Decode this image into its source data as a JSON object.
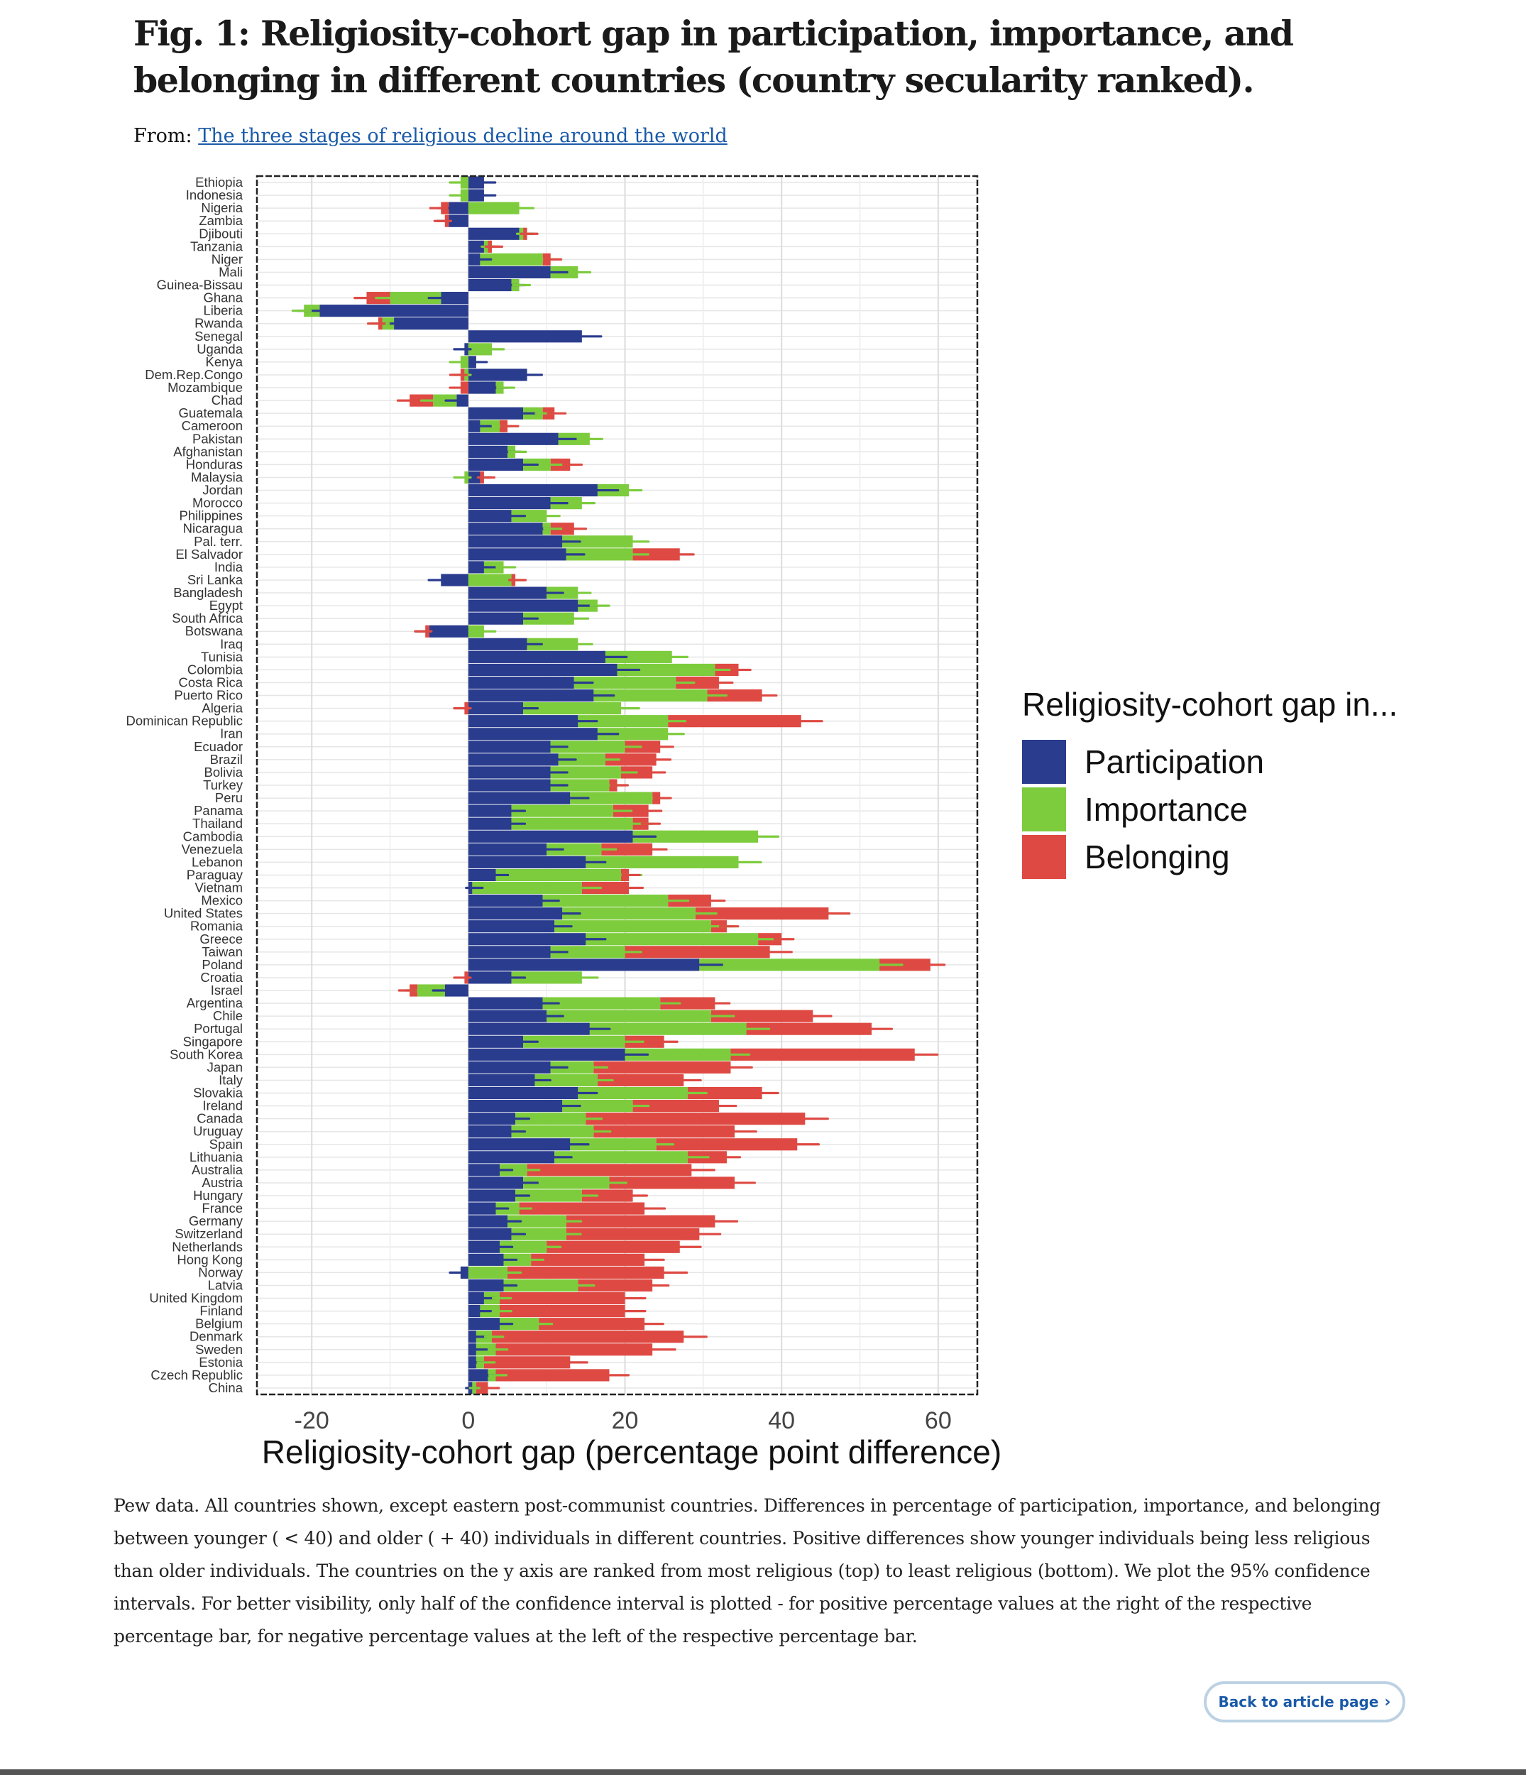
{
  "page": {
    "figure_title": "Fig. 1: Religiosity-cohort gap in participation, importance, and belonging in different countries (country secularity ranked).",
    "from_label": "From:",
    "source_link": "The three stages of religious decline around the world",
    "caption": "Pew data. All countries shown, except eastern post-communist countries. Differences in percentage of participation, importance, and belonging between younger ( < 40) and older ( + 40) individuals in different countries. Positive differences show younger individuals being less religious than older individuals. The countries on the y axis are ranked from most religious (top) to least religious (bottom). We plot the 95% confidence intervals. For better visibility, only half of the confidence interval is plotted - for positive percentage values at the right of the respective percentage bar, for negative percentage values at the left of the respective percentage bar.",
    "back_button": "Back to article page",
    "back_icon": "chevron-right-icon"
  },
  "chart_data": {
    "type": "bar",
    "orientation": "horizontal",
    "stacked": true,
    "xlabel": "Religiosity-cohort gap (percentage point difference)",
    "ylabel": "",
    "xlim": [
      -27,
      65
    ],
    "xticks": [
      -20,
      0,
      20,
      40,
      60
    ],
    "grid": true,
    "legend_title": "Religiosity-cohort gap in...",
    "legend_position": "right",
    "series": [
      {
        "name": "Participation",
        "color": "#2a3c8e"
      },
      {
        "name": "Importance",
        "color": "#7dcc3d"
      },
      {
        "name": "Belonging",
        "color": "#de4a43"
      }
    ],
    "rows": [
      {
        "country": "Ethiopia",
        "values": [
          2,
          -1,
          0
        ]
      },
      {
        "country": "Indonesia",
        "values": [
          2,
          -1,
          0
        ]
      },
      {
        "country": "Nigeria",
        "values": [
          -2.5,
          6.5,
          -1
        ]
      },
      {
        "country": "Zambia",
        "values": [
          -2.5,
          0,
          -0.5
        ]
      },
      {
        "country": "Djibouti",
        "values": [
          6.5,
          0.5,
          0.5
        ]
      },
      {
        "country": "Tanzania",
        "values": [
          2,
          0.5,
          0.5
        ]
      },
      {
        "country": "Niger",
        "values": [
          1.5,
          8,
          1
        ]
      },
      {
        "country": "Mali",
        "values": [
          10.5,
          3.5,
          0
        ]
      },
      {
        "country": "Guinea-Bissau",
        "values": [
          5.5,
          1,
          0
        ]
      },
      {
        "country": "Ghana",
        "values": [
          -3.5,
          -6.5,
          -3
        ]
      },
      {
        "country": "Liberia",
        "values": [
          -19,
          -2,
          0
        ]
      },
      {
        "country": "Rwanda",
        "values": [
          -9.5,
          -1.5,
          -0.5
        ]
      },
      {
        "country": "Senegal",
        "values": [
          14.5,
          0,
          0
        ]
      },
      {
        "country": "Uganda",
        "values": [
          -0.5,
          3,
          0
        ]
      },
      {
        "country": "Kenya",
        "values": [
          1,
          -1,
          0
        ]
      },
      {
        "country": "Dem.Rep.Congo",
        "values": [
          7.5,
          -0.5,
          -0.5
        ]
      },
      {
        "country": "Mozambique",
        "values": [
          3.5,
          1,
          -1
        ]
      },
      {
        "country": "Chad",
        "values": [
          -1.5,
          -3,
          -3
        ]
      },
      {
        "country": "Guatemala",
        "values": [
          7,
          2.5,
          1.5
        ]
      },
      {
        "country": "Cameroon",
        "values": [
          1.5,
          2.5,
          1
        ]
      },
      {
        "country": "Pakistan",
        "values": [
          11.5,
          4,
          0
        ]
      },
      {
        "country": "Afghanistan",
        "values": [
          5,
          1,
          0
        ]
      },
      {
        "country": "Honduras",
        "values": [
          7,
          3.5,
          2.5
        ]
      },
      {
        "country": "Malaysia",
        "values": [
          1.5,
          -0.5,
          0.5
        ]
      },
      {
        "country": "Jordan",
        "values": [
          16.5,
          4,
          0
        ]
      },
      {
        "country": "Morocco",
        "values": [
          10.5,
          4,
          0
        ]
      },
      {
        "country": "Philippines",
        "values": [
          5.5,
          4.5,
          0
        ]
      },
      {
        "country": "Nicaragua",
        "values": [
          9.5,
          1,
          3
        ]
      },
      {
        "country": "Pal. terr.",
        "values": [
          12,
          9,
          0
        ]
      },
      {
        "country": "El Salvador",
        "values": [
          12.5,
          8.5,
          6
        ]
      },
      {
        "country": "India",
        "values": [
          2,
          2.5,
          0
        ]
      },
      {
        "country": "Sri Lanka",
        "values": [
          -3.5,
          5.5,
          0.5
        ]
      },
      {
        "country": "Bangladesh",
        "values": [
          10,
          4,
          0
        ]
      },
      {
        "country": "Egypt",
        "values": [
          14,
          2.5,
          0
        ]
      },
      {
        "country": "South Africa",
        "values": [
          7,
          6.5,
          0
        ]
      },
      {
        "country": "Botswana",
        "values": [
          -5,
          2,
          -0.5
        ]
      },
      {
        "country": "Iraq",
        "values": [
          7.5,
          6.5,
          0
        ]
      },
      {
        "country": "Tunisia",
        "values": [
          17.5,
          8.5,
          0
        ]
      },
      {
        "country": "Colombia",
        "values": [
          19,
          12.5,
          3
        ]
      },
      {
        "country": "Costa Rica",
        "values": [
          13.5,
          13,
          5.5
        ]
      },
      {
        "country": "Puerto Rico",
        "values": [
          16,
          14.5,
          7
        ]
      },
      {
        "country": "Algeria",
        "values": [
          7,
          12.5,
          -0.5
        ]
      },
      {
        "country": "Dominican Republic",
        "values": [
          14,
          11.5,
          17
        ]
      },
      {
        "country": "Iran",
        "values": [
          16.5,
          9,
          0
        ]
      },
      {
        "country": "Ecuador",
        "values": [
          10.5,
          9.5,
          4.5
        ]
      },
      {
        "country": "Brazil",
        "values": [
          11.5,
          6,
          6.5
        ]
      },
      {
        "country": "Bolivia",
        "values": [
          10.5,
          9,
          4
        ]
      },
      {
        "country": "Turkey",
        "values": [
          10.5,
          7.5,
          1
        ]
      },
      {
        "country": "Peru",
        "values": [
          13,
          10.5,
          1
        ]
      },
      {
        "country": "Panama",
        "values": [
          5.5,
          13,
          4.5
        ]
      },
      {
        "country": "Thailand",
        "values": [
          5.5,
          15.5,
          2
        ]
      },
      {
        "country": "Cambodia",
        "values": [
          21,
          16,
          0
        ]
      },
      {
        "country": "Venezuela",
        "values": [
          10,
          7,
          6.5
        ]
      },
      {
        "country": "Lebanon",
        "values": [
          15,
          19.5,
          0
        ]
      },
      {
        "country": "Paraguay",
        "values": [
          3.5,
          16,
          1
        ]
      },
      {
        "country": "Vietnam",
        "values": [
          0.5,
          14,
          6
        ]
      },
      {
        "country": "Mexico",
        "values": [
          9.5,
          16,
          5.5
        ]
      },
      {
        "country": "United States",
        "values": [
          12,
          17,
          17
        ]
      },
      {
        "country": "Romania",
        "values": [
          11,
          20,
          2
        ]
      },
      {
        "country": "Greece",
        "values": [
          15,
          22,
          3
        ]
      },
      {
        "country": "Taiwan",
        "values": [
          10.5,
          9.5,
          18.5
        ]
      },
      {
        "country": "Poland",
        "values": [
          29.5,
          23,
          6.5
        ]
      },
      {
        "country": "Croatia",
        "values": [
          5.5,
          9,
          -0.5
        ]
      },
      {
        "country": "Israel",
        "values": [
          -3,
          -3.5,
          -1
        ]
      },
      {
        "country": "Argentina",
        "values": [
          9.5,
          15,
          7
        ]
      },
      {
        "country": "Chile",
        "values": [
          10,
          21,
          13
        ]
      },
      {
        "country": "Portugal",
        "values": [
          15.5,
          20,
          16
        ]
      },
      {
        "country": "Singapore",
        "values": [
          7,
          13,
          5
        ]
      },
      {
        "country": "South Korea",
        "values": [
          20,
          13.5,
          23.5
        ]
      },
      {
        "country": "Japan",
        "values": [
          10.5,
          5.5,
          17.5
        ]
      },
      {
        "country": "Italy",
        "values": [
          8.5,
          8,
          11
        ]
      },
      {
        "country": "Slovakia",
        "values": [
          14,
          14,
          9.5
        ]
      },
      {
        "country": "Ireland",
        "values": [
          12,
          9,
          11
        ]
      },
      {
        "country": "Canada",
        "values": [
          6,
          9,
          28
        ]
      },
      {
        "country": "Uruguay",
        "values": [
          5.5,
          10.5,
          18
        ]
      },
      {
        "country": "Spain",
        "values": [
          13,
          11,
          18
        ]
      },
      {
        "country": "Lithuania",
        "values": [
          11,
          17,
          5
        ]
      },
      {
        "country": "Australia",
        "values": [
          4,
          3.5,
          21
        ]
      },
      {
        "country": "Austria",
        "values": [
          7,
          11,
          16
        ]
      },
      {
        "country": "Hungary",
        "values": [
          6,
          8.5,
          6.5
        ]
      },
      {
        "country": "France",
        "values": [
          3.5,
          3,
          16
        ]
      },
      {
        "country": "Germany",
        "values": [
          5,
          7.5,
          19
        ]
      },
      {
        "country": "Switzerland",
        "values": [
          5.5,
          7,
          17
        ]
      },
      {
        "country": "Netherlands",
        "values": [
          4,
          6,
          17
        ]
      },
      {
        "country": "Hong Kong",
        "values": [
          4.5,
          3.5,
          14.5
        ]
      },
      {
        "country": "Norway",
        "values": [
          -1,
          5,
          20
        ]
      },
      {
        "country": "Latvia",
        "values": [
          4.5,
          9.5,
          9.5
        ]
      },
      {
        "country": "United Kingdom",
        "values": [
          2,
          2,
          16
        ]
      },
      {
        "country": "Finland",
        "values": [
          1.5,
          2.5,
          16
        ]
      },
      {
        "country": "Belgium",
        "values": [
          4,
          5,
          13.5
        ]
      },
      {
        "country": "Denmark",
        "values": [
          1,
          2,
          24.5
        ]
      },
      {
        "country": "Sweden",
        "values": [
          1,
          2.5,
          20
        ]
      },
      {
        "country": "Estonia",
        "values": [
          1,
          1,
          11
        ]
      },
      {
        "country": "Czech Republic",
        "values": [
          2.5,
          1,
          14.5
        ]
      },
      {
        "country": "China",
        "values": [
          0.5,
          0.5,
          1.5
        ]
      }
    ]
  }
}
